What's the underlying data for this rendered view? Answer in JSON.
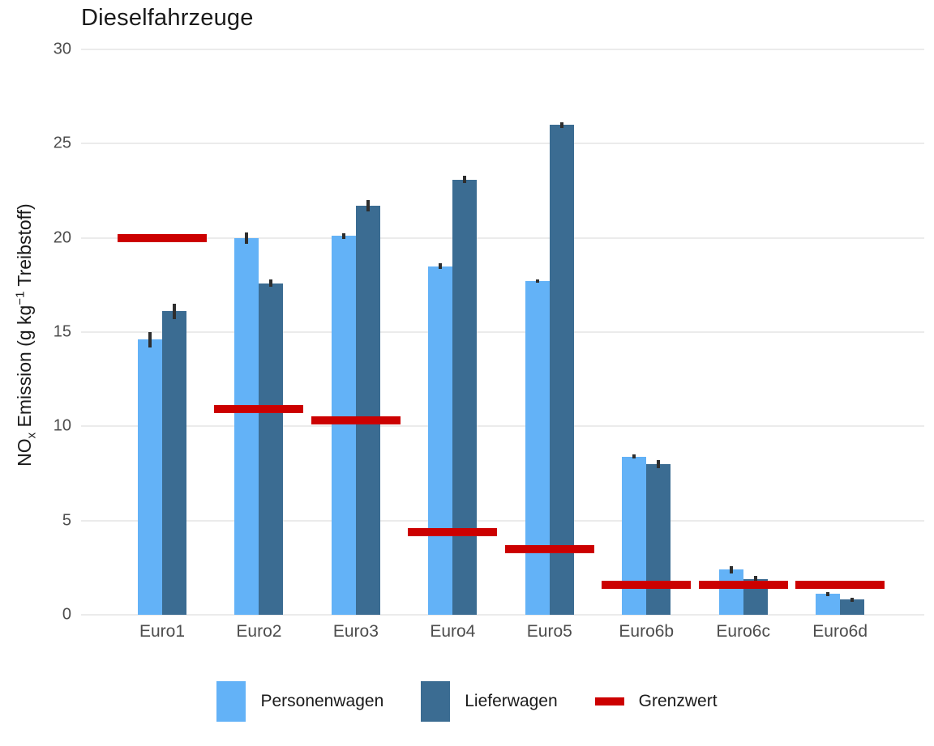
{
  "chart_data": {
    "type": "bar",
    "title": "Dieselfahrzeuge",
    "ylabel_parts": {
      "pre": "NO",
      "sub": "x",
      "mid": " Emission (g kg",
      "sup": "−1",
      "post": " Treibstoff)"
    },
    "ylabel": "NOx Emission (g kg-1 Treibstoff)",
    "xlabel": "",
    "ylim": [
      0,
      30
    ],
    "yticks": [
      0,
      5,
      10,
      15,
      20,
      25,
      30
    ],
    "grid": "horizontal-major",
    "legend_position": "bottom",
    "categories": [
      "Euro1",
      "Euro2",
      "Euro3",
      "Euro4",
      "Euro5",
      "Euro6b",
      "Euro6c",
      "Euro6d"
    ],
    "series": [
      {
        "name": "Personenwagen",
        "color": "#63b2f7",
        "values": [
          14.6,
          20.0,
          20.1,
          18.5,
          17.7,
          8.4,
          2.4,
          1.1
        ],
        "errors": [
          0.4,
          0.3,
          0.15,
          0.15,
          0.1,
          0.1,
          0.2,
          0.1
        ]
      },
      {
        "name": "Lieferwagen",
        "color": "#3b6c92",
        "values": [
          16.1,
          17.6,
          21.7,
          23.1,
          26.0,
          8.0,
          1.9,
          0.8
        ],
        "errors": [
          0.4,
          0.2,
          0.3,
          0.2,
          0.15,
          0.2,
          0.15,
          0.1
        ]
      }
    ],
    "limit_series": {
      "name": "Grenzwert",
      "color": "#cc0000",
      "values": [
        20,
        10.9,
        10.3,
        4.4,
        3.5,
        1.6,
        1.6,
        1.6
      ]
    },
    "colors": {
      "gridline": "#ebebeb",
      "tick_text": "#4d4d4d",
      "title_text": "#1a1a1a",
      "errorbar": "#2e2e2e"
    }
  }
}
